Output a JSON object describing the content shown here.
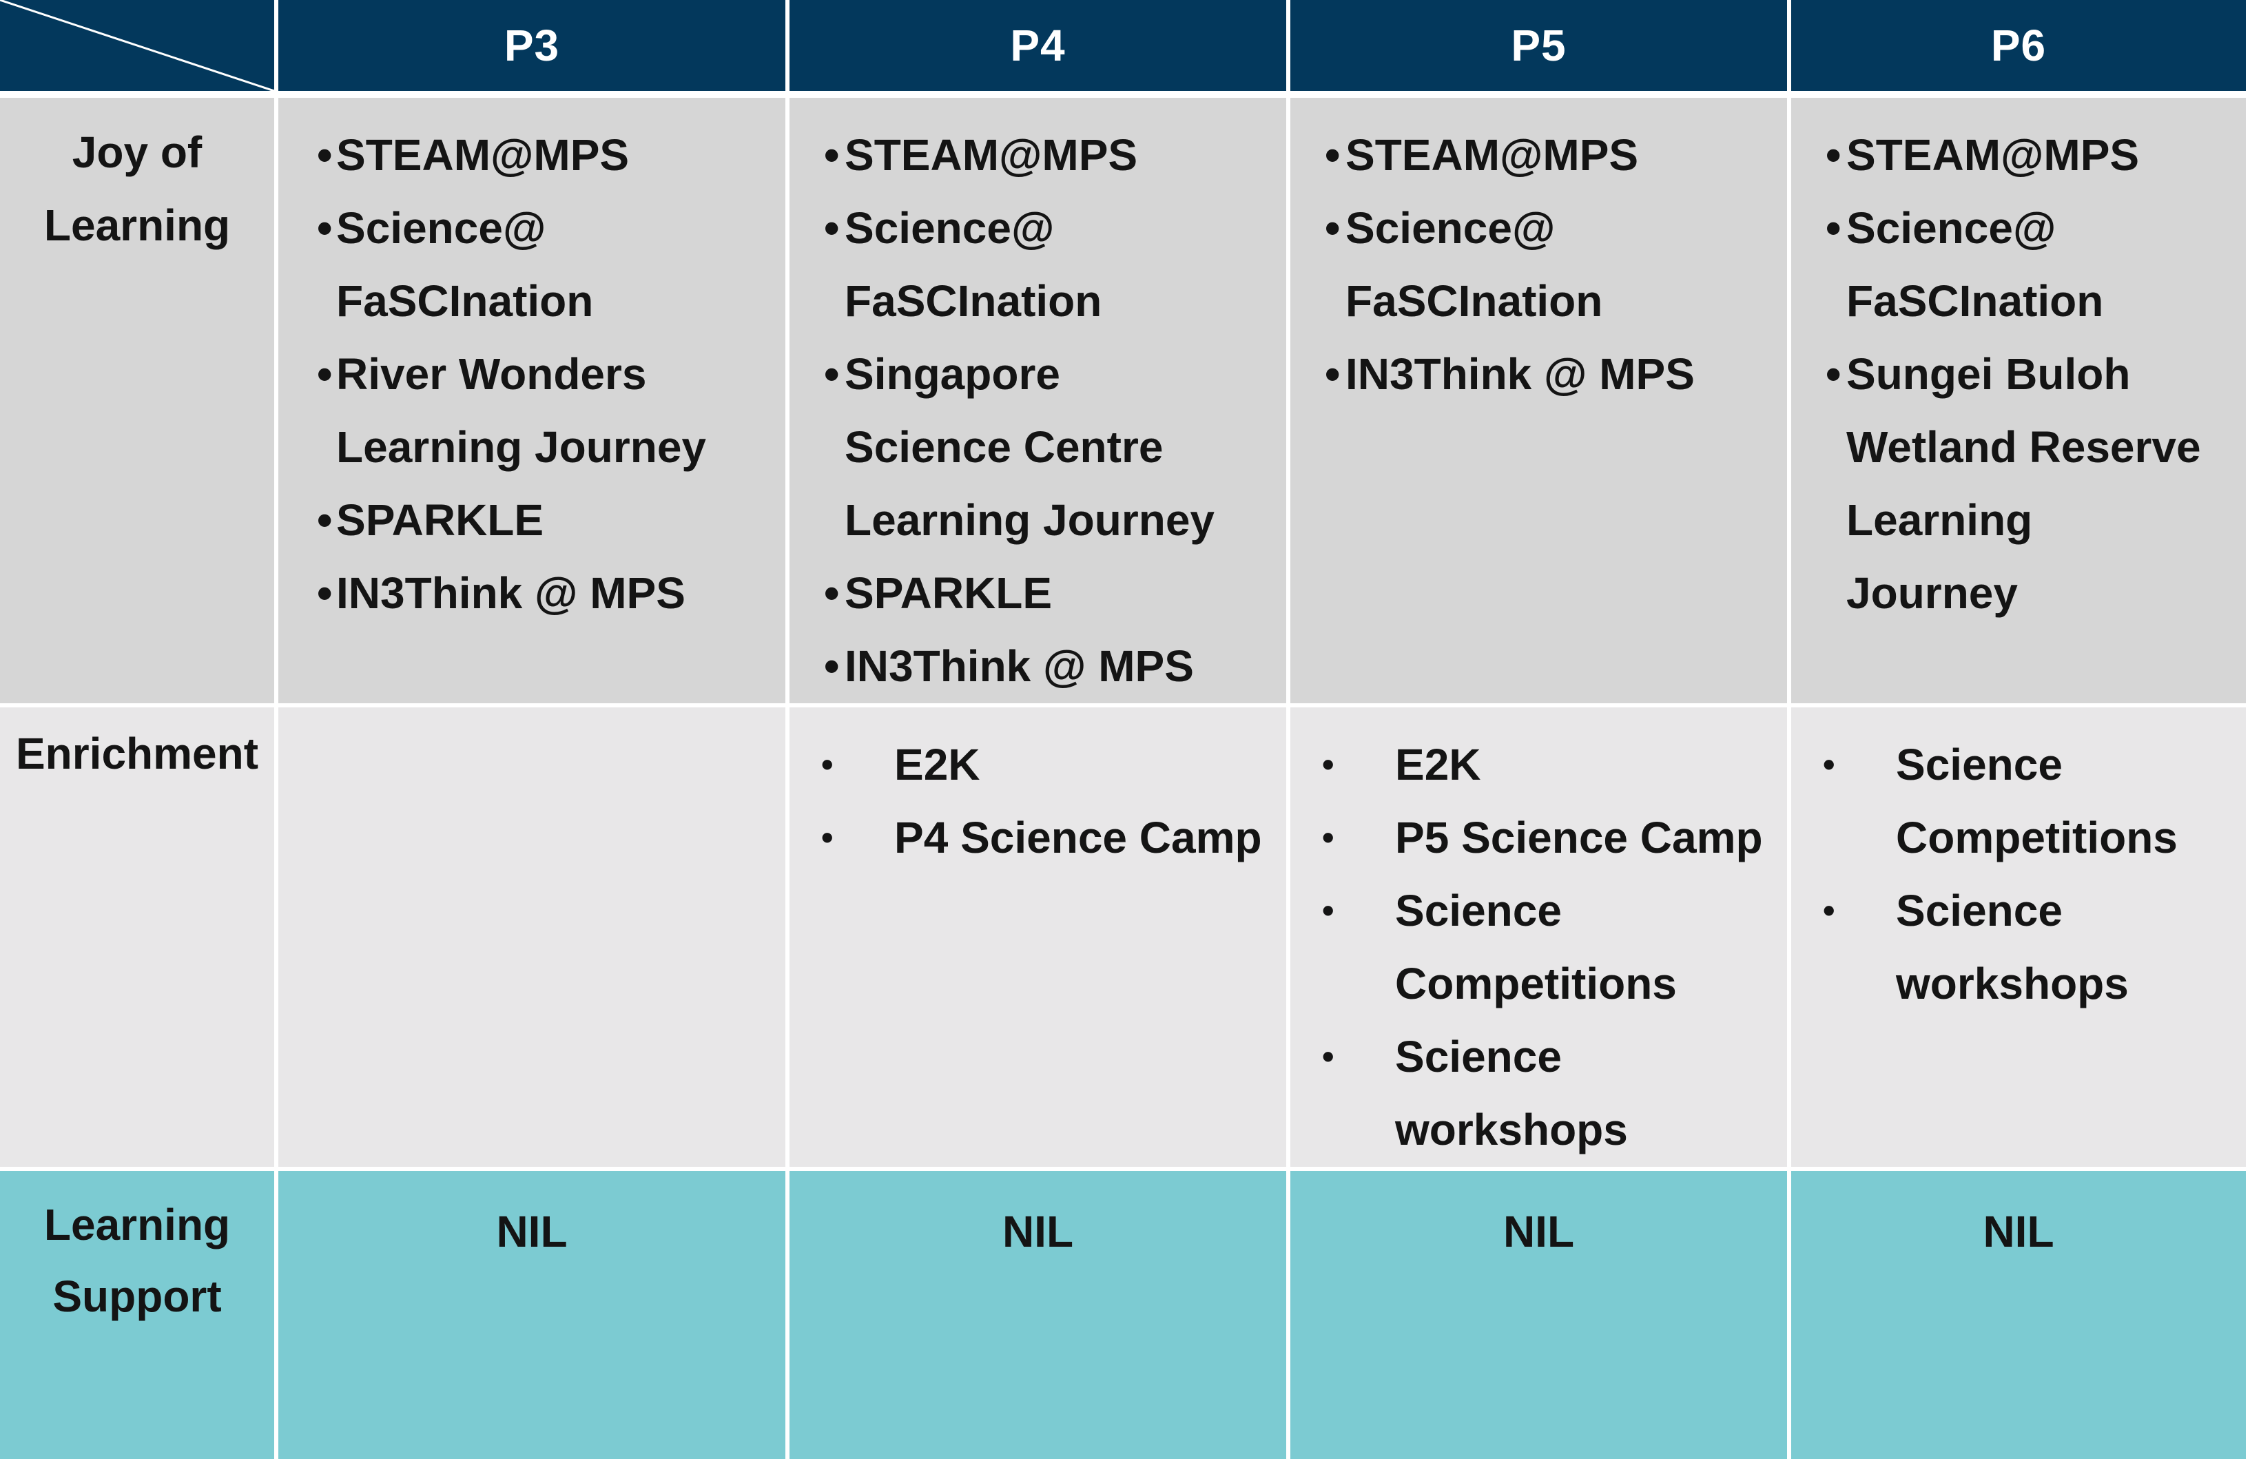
{
  "table": {
    "columns": [
      "P3",
      "P4",
      "P5",
      "P6"
    ],
    "rows": [
      {
        "label": "Joy of Learning",
        "cells": [
          [
            "STEAM@MPS",
            "Science@ FaSCInation",
            "River Wonders Learning Journey",
            "SPARKLE",
            "IN3Think @ MPS"
          ],
          [
            "STEAM@MPS",
            "Science@ FaSCInation",
            "Singapore Science Centre Learning Journey",
            "SPARKLE",
            "IN3Think @ MPS"
          ],
          [
            "STEAM@MPS",
            "Science@ FaSCInation",
            "IN3Think @ MPS"
          ],
          [
            "STEAM@MPS",
            "Science@ FaSCInation",
            "Sungei Buloh Wetland Reserve Learning Journey"
          ]
        ]
      },
      {
        "label": "Enrichment",
        "cells": [
          [],
          [
            "E2K",
            "P4 Science Camp"
          ],
          [
            "E2K",
            "P5 Science Camp",
            "Science Competitions",
            "Science workshops"
          ],
          [
            "Science Competitions",
            "Science workshops"
          ]
        ]
      },
      {
        "label": "Learning Support",
        "cells": [
          "NIL",
          "NIL",
          "NIL",
          "NIL"
        ]
      }
    ],
    "bullet": "•",
    "colors": {
      "header_bg": "#03385c",
      "joy_bg": "#d6d6d6",
      "enrichment_bg": "#e8e7e8",
      "support_bg": "#7ccbd2"
    }
  }
}
